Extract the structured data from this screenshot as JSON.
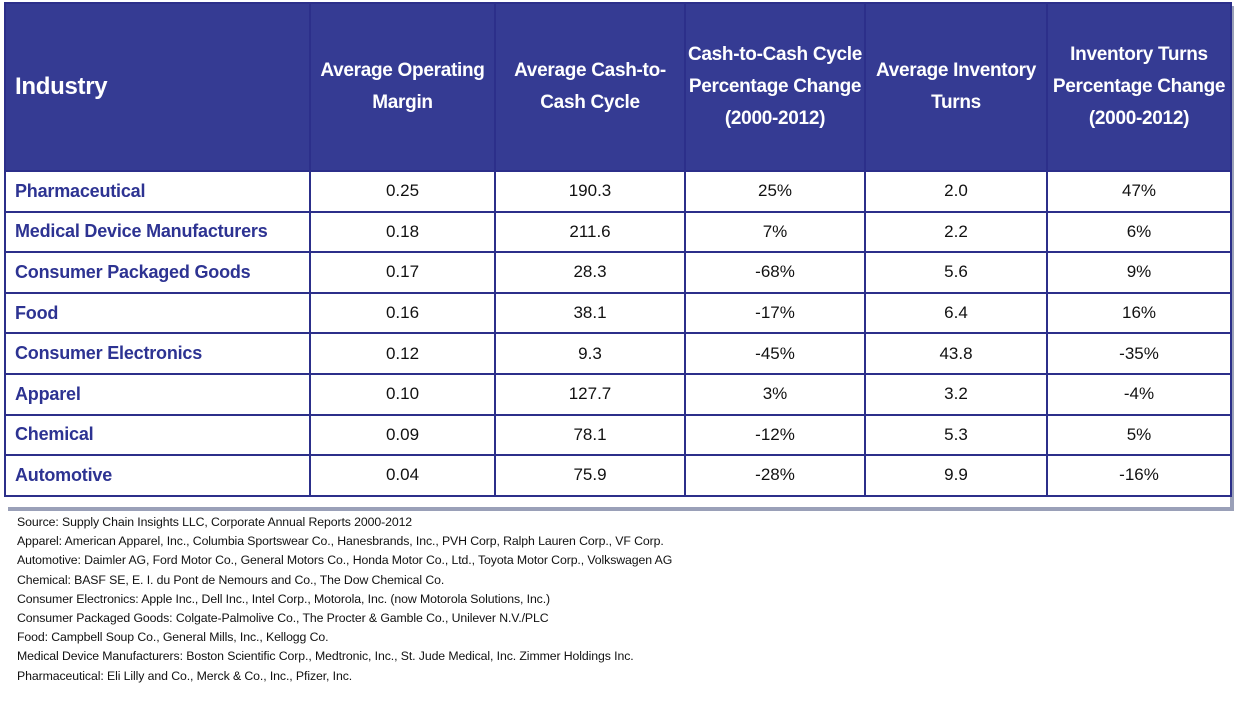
{
  "table": {
    "headers": [
      "Industry",
      "Average Operating Margin",
      "Average Cash-to-Cash Cycle",
      "Cash-to-Cash Cycle Percentage Change (2000-2012)",
      "Average Inventory Turns",
      "Inventory Turns Percentage Change (2000-2012)"
    ],
    "rows": [
      {
        "industry": "Pharmaceutical",
        "margin": "0.25",
        "c2c": "190.3",
        "c2c_change": "25%",
        "turns": "2.0",
        "turns_change": "47%"
      },
      {
        "industry": "Medical Device Manufacturers",
        "margin": "0.18",
        "c2c": "211.6",
        "c2c_change": "7%",
        "turns": "2.2",
        "turns_change": "6%"
      },
      {
        "industry": "Consumer Packaged Goods",
        "margin": "0.17",
        "c2c": "28.3",
        "c2c_change": "-68%",
        "turns": "5.6",
        "turns_change": "9%"
      },
      {
        "industry": "Food",
        "margin": "0.16",
        "c2c": "38.1",
        "c2c_change": "-17%",
        "turns": "6.4",
        "turns_change": "16%"
      },
      {
        "industry": "Consumer Electronics",
        "margin": "0.12",
        "c2c": "9.3",
        "c2c_change": "-45%",
        "turns": "43.8",
        "turns_change": "-35%"
      },
      {
        "industry": "Apparel",
        "margin": "0.10",
        "c2c": "127.7",
        "c2c_change": "3%",
        "turns": "3.2",
        "turns_change": "-4%"
      },
      {
        "industry": "Chemical",
        "margin": "0.09",
        "c2c": "78.1",
        "c2c_change": "-12%",
        "turns": "5.3",
        "turns_change": "5%"
      },
      {
        "industry": "Automotive",
        "margin": "0.04",
        "c2c": "75.9",
        "c2c_change": "-28%",
        "turns": "9.9",
        "turns_change": "-16%"
      }
    ]
  },
  "notes": [
    "Source:  Supply Chain Insights LLC, Corporate Annual Reports 2000-2012",
    "Apparel: American Apparel, Inc., Columbia Sportswear Co., Hanesbrands,  Inc., PVH Corp, Ralph Lauren Corp., VF Corp.",
    "Automotive:  Daimler AG, Ford Motor Co., General Motors Co., Honda Motor Co., Ltd., Toyota Motor Corp., Volkswagen AG",
    "Chemical: BASF SE, E. I. du Pont de Nemours and Co., The Dow Chemical Co.",
    "Consumer Electronics: Apple Inc., Dell Inc., Intel Corp., Motorola, Inc. (now Motorola Solutions, Inc.)",
    "Consumer Packaged Goods: Colgate-Palmolive Co., The Procter & Gamble Co., Unilever N.V./PLC",
    "Food: Campbell Soup Co., General Mills, Inc., Kellogg Co.",
    "Medical Device Manufacturers: Boston Scientific Corp., Medtronic, Inc., St. Jude Medical, Inc. Zimmer Holdings Inc.",
    "Pharmaceutical: Eli Lilly and Co., Merck & Co., Inc., Pfizer, Inc."
  ],
  "colors": {
    "header_bg": "#353b93",
    "industry_text": "#2d3392",
    "border": "#2c2f8a"
  }
}
